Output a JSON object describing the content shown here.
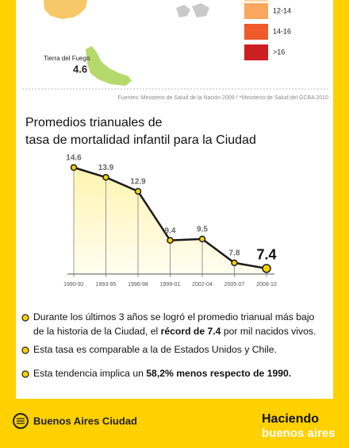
{
  "map": {
    "region_label": "Tierra del Fuego",
    "region_value": "4.6",
    "legend": [
      {
        "label": "12-14",
        "color": "#f9a65e"
      },
      {
        "label": "14-16",
        "color": "#ee5a2a"
      },
      {
        "label": ">16",
        "color": "#cc1f24"
      }
    ]
  },
  "sources": "Fuentes: Ministerio de Salud de la Nación 2009 / *Ministerio de Salud del GCBA 2010",
  "chart_data": {
    "type": "line",
    "title": [
      "Promedios trianuales de",
      "tasa de mortalidad infantil para la Ciudad"
    ],
    "categories": [
      "1990-92",
      "1993-95",
      "1996-98",
      "1999-01",
      "2002-04",
      "2005-07",
      "2008-10"
    ],
    "values": [
      14.6,
      13.9,
      12.9,
      9.4,
      9.5,
      7.8,
      7.4
    ],
    "ylim": [
      7,
      15.5
    ],
    "color": "#1a1a1a",
    "marker_color": "#ffd100"
  },
  "bullets": [
    {
      "lines": [
        [
          {
            "text": "Durante los últimos 3 años se logró el promedio trianual más bajo",
            "bold": false
          }
        ],
        [
          {
            "text": "de la historia de la Ciudad, el ",
            "bold": false
          },
          {
            "text": "récord de 7.4",
            "bold": true
          },
          {
            "text": " por mil nacidos vivos.",
            "bold": false
          }
        ]
      ]
    },
    {
      "lines": [
        [
          {
            "text": "Esta tasa es comparable a la de Estados Unidos y Chile.",
            "bold": false
          }
        ]
      ]
    },
    {
      "lines": [
        [
          {
            "text": "Esta tendencia implica un ",
            "bold": false
          },
          {
            "text": "58,2% menos respecto de 1990.",
            "bold": true
          }
        ]
      ]
    }
  ],
  "footer": {
    "brand": "Buenos Aires Ciudad",
    "slogan_top": "Haciendo",
    "slogan_bottom": "buenos aires"
  }
}
